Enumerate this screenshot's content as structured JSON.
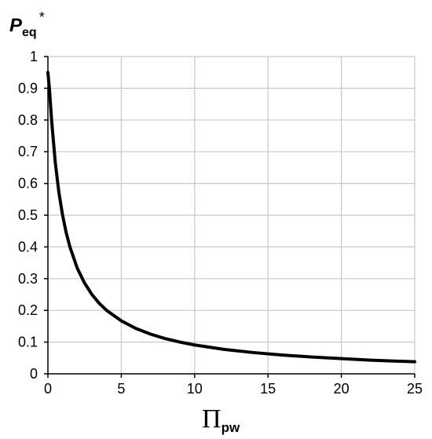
{
  "chart_data": {
    "type": "line",
    "ylabel": {
      "main": "P",
      "sub": "eq",
      "sup": "*"
    },
    "xlabel": {
      "main": "Π",
      "sub": "pw"
    },
    "xlim": [
      0,
      25
    ],
    "ylim": [
      0,
      1
    ],
    "xticks": [
      0,
      5,
      10,
      15,
      20,
      25
    ],
    "yticks": [
      0,
      0.1,
      0.2,
      0.3,
      0.4,
      0.5,
      0.6,
      0.7,
      0.8,
      0.9,
      1
    ],
    "ytick_labels": [
      "0",
      "0.1",
      "0.2",
      "0.3",
      "0.4",
      "0.5",
      "0.6",
      "0.7",
      "0.8",
      "0.9",
      "1"
    ],
    "grid": true,
    "colors": {
      "line": "#000000",
      "grid": "#c8c8c8",
      "axis": "#000000"
    },
    "series": [
      {
        "x": [
          0,
          0.1,
          0.25,
          0.5,
          0.75,
          1,
          1.25,
          1.5,
          2,
          2.5,
          3,
          3.5,
          4,
          5,
          6,
          7,
          8,
          9,
          10,
          12,
          14,
          16,
          18,
          20,
          22,
          25
        ],
        "y": [
          0.95,
          0.9,
          0.8,
          0.667,
          0.571,
          0.5,
          0.444,
          0.4,
          0.333,
          0.286,
          0.25,
          0.222,
          0.2,
          0.167,
          0.143,
          0.125,
          0.111,
          0.1,
          0.091,
          0.077,
          0.067,
          0.059,
          0.053,
          0.048,
          0.043,
          0.038
        ]
      }
    ]
  }
}
